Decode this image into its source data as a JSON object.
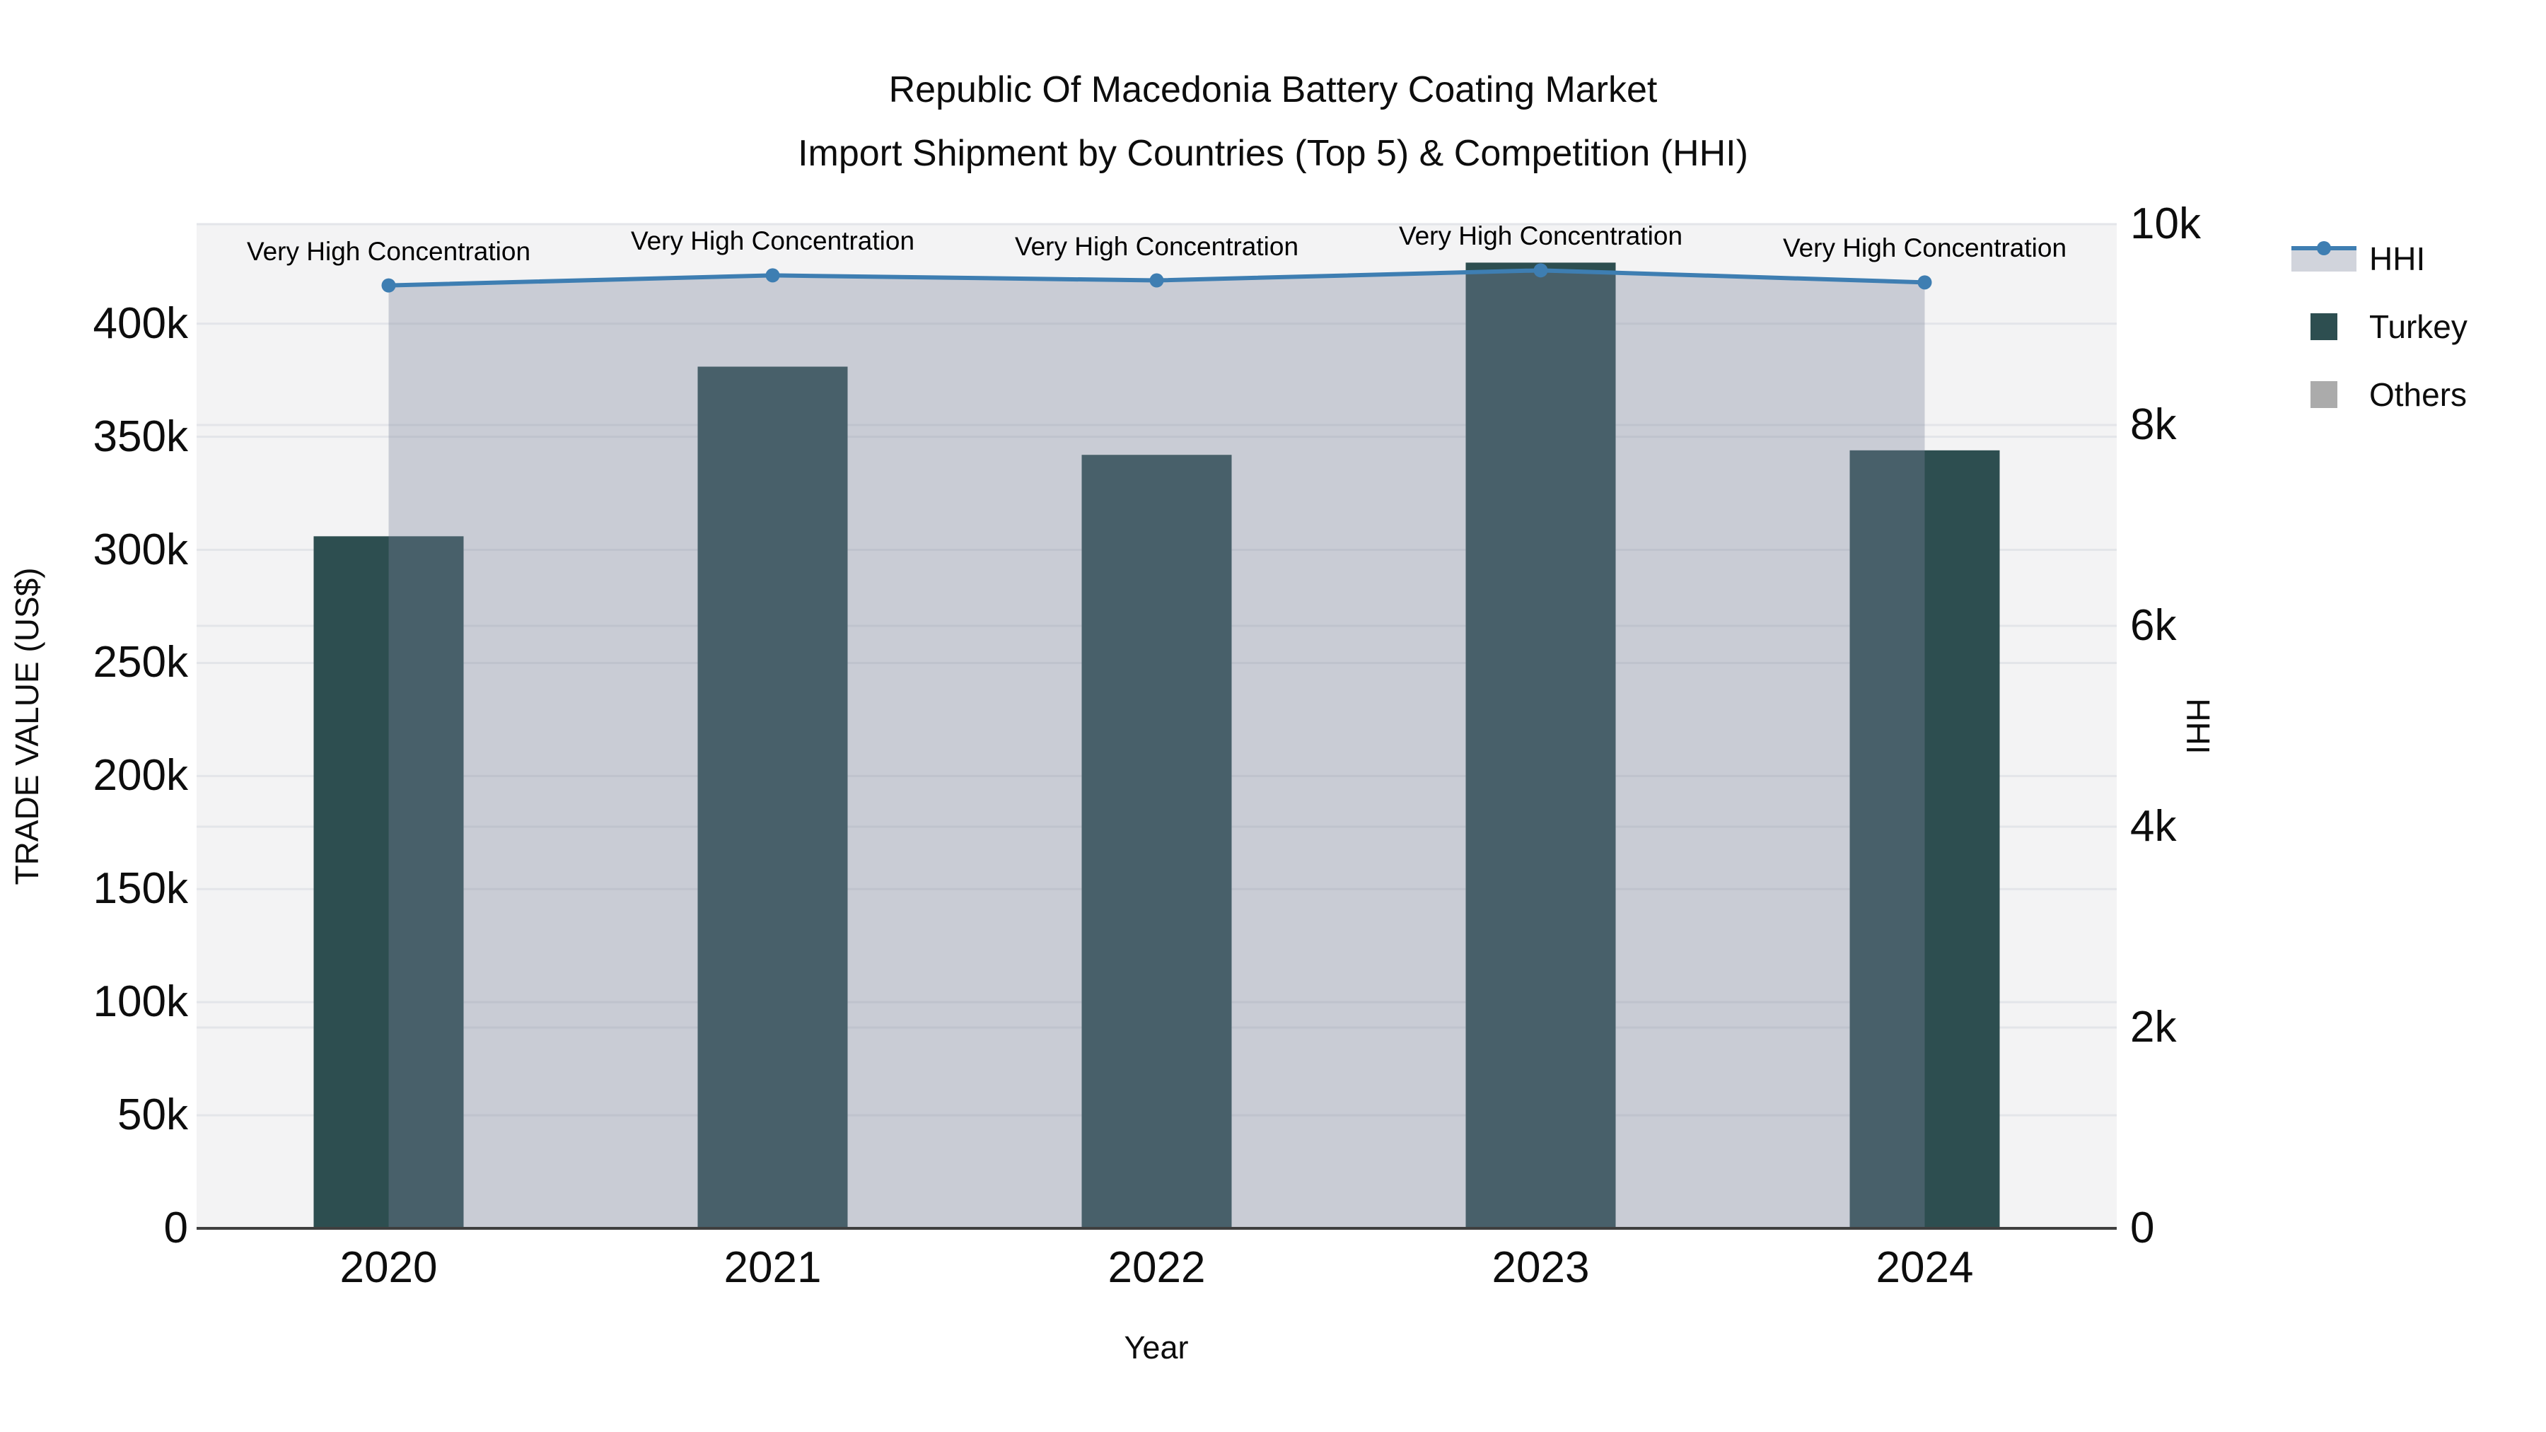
{
  "title": {
    "line1": "Republic Of Macedonia Battery Coating Market",
    "line2": "Import Shipment by Countries (Top 5) & Competition (HHI)"
  },
  "axes": {
    "x_title": "Year",
    "y_left_title": "TRADE VALUE (US$)",
    "y_right_title": "HHI"
  },
  "legend": {
    "hhi_label": "HHI",
    "turkey_label": "Turkey",
    "others_label": "Others"
  },
  "colors": {
    "bar_turkey": "#2D4E50",
    "bar_others": "#ABABAB",
    "hhi_line": "#3E7EB2",
    "hhi_fill": "rgba(124,132,155,0.35)",
    "plot_bg": "#F3F3F4",
    "gridline": "#E3E5E9",
    "axis_line": "#3F3F3F",
    "legend_band": "#D1D4DC"
  },
  "chart_data": {
    "type": "bar+line-area combo",
    "categories": [
      "2020",
      "2021",
      "2022",
      "2023",
      "2024"
    ],
    "series": [
      {
        "name": "Turkey",
        "type": "bar",
        "axis": "left",
        "values": [
          306000,
          381000,
          342000,
          427000,
          344000
        ]
      },
      {
        "name": "Others",
        "type": "bar",
        "axis": "left",
        "values": [
          0,
          0,
          0,
          0,
          0
        ]
      },
      {
        "name": "HHI",
        "type": "line",
        "axis": "right",
        "fill": "tozeroy",
        "values": [
          9390,
          9490,
          9440,
          9540,
          9420
        ]
      }
    ],
    "annotations": [
      {
        "category": "2020",
        "text": "Very High Concentration"
      },
      {
        "category": "2021",
        "text": "Very High Concentration"
      },
      {
        "category": "2022",
        "text": "Very High Concentration"
      },
      {
        "category": "2023",
        "text": "Very High Concentration"
      },
      {
        "category": "2024",
        "text": "Very High Concentration"
      }
    ],
    "xlabel": "Year",
    "ylabel_left": "TRADE VALUE (US$)",
    "ylabel_right": "HHI",
    "ylim_left": [
      0,
      444000
    ],
    "ylim_right": [
      0,
      10000
    ],
    "yticks_left": {
      "values": [
        0,
        50000,
        100000,
        150000,
        200000,
        250000,
        300000,
        350000,
        400000
      ],
      "labels": [
        "0",
        "50k",
        "100k",
        "150k",
        "200k",
        "250k",
        "300k",
        "350k",
        "400k"
      ]
    },
    "yticks_right": {
      "values": [
        0,
        2000,
        4000,
        6000,
        8000,
        10000
      ],
      "labels": [
        "0",
        "2k",
        "4k",
        "6k",
        "8k",
        "10k"
      ]
    },
    "grid": true,
    "legend_position": "top-right-outside"
  }
}
